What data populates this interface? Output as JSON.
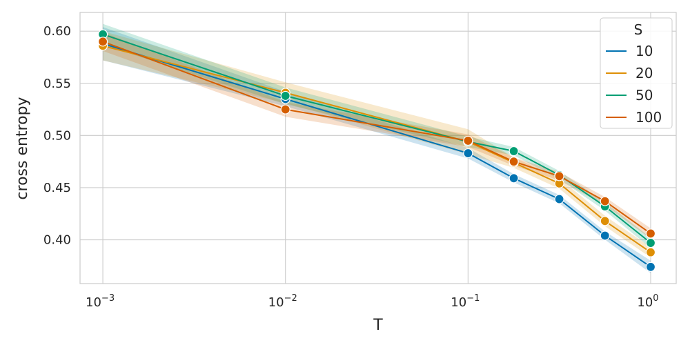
{
  "chart_data": {
    "type": "line",
    "xlabel": "T",
    "ylabel": "cross entropy",
    "xscale": "log",
    "xlim": [
      0.00075,
      1.38
    ],
    "ylim": [
      0.358,
      0.618
    ],
    "grid": true,
    "x_ticks": [
      {
        "value": 0.001,
        "base": "10",
        "exp": "−3"
      },
      {
        "value": 0.01,
        "base": "10",
        "exp": "−2"
      },
      {
        "value": 0.1,
        "base": "10",
        "exp": "−1"
      },
      {
        "value": 1,
        "base": "10",
        "exp": "0"
      }
    ],
    "y_ticks": [
      {
        "value": 0.4,
        "label": "0.40"
      },
      {
        "value": 0.45,
        "label": "0.45"
      },
      {
        "value": 0.5,
        "label": "0.50"
      },
      {
        "value": 0.55,
        "label": "0.55"
      },
      {
        "value": 0.6,
        "label": "0.60"
      }
    ],
    "legend": {
      "title": "S",
      "placement": "top-right"
    },
    "x": [
      0.001,
      0.01,
      0.1,
      0.178,
      0.316,
      0.562,
      1.0
    ],
    "series": [
      {
        "name": "10",
        "color": "#0173b2",
        "values": [
          0.588,
          0.535,
          0.483,
          0.459,
          0.439,
          0.404,
          0.374
        ],
        "band": [
          0.016,
          0.007,
          0.005,
          0.004,
          0.004,
          0.004,
          0.006
        ]
      },
      {
        "name": "20",
        "color": "#de8f05",
        "values": [
          0.586,
          0.541,
          0.494,
          0.474,
          0.454,
          0.418,
          0.388
        ],
        "band": [
          0.014,
          0.01,
          0.012,
          0.005,
          0.005,
          0.005,
          0.005
        ]
      },
      {
        "name": "50",
        "color": "#029e73",
        "values": [
          0.597,
          0.538,
          0.494,
          0.485,
          0.462,
          0.432,
          0.397
        ],
        "band": [
          0.01,
          0.008,
          0.005,
          0.004,
          0.004,
          0.004,
          0.005
        ]
      },
      {
        "name": "100",
        "color": "#d55e00",
        "values": [
          0.59,
          0.525,
          0.495,
          0.475,
          0.461,
          0.437,
          0.406
        ],
        "band": [
          0.009,
          0.007,
          0.006,
          0.004,
          0.004,
          0.004,
          0.005
        ]
      }
    ]
  }
}
